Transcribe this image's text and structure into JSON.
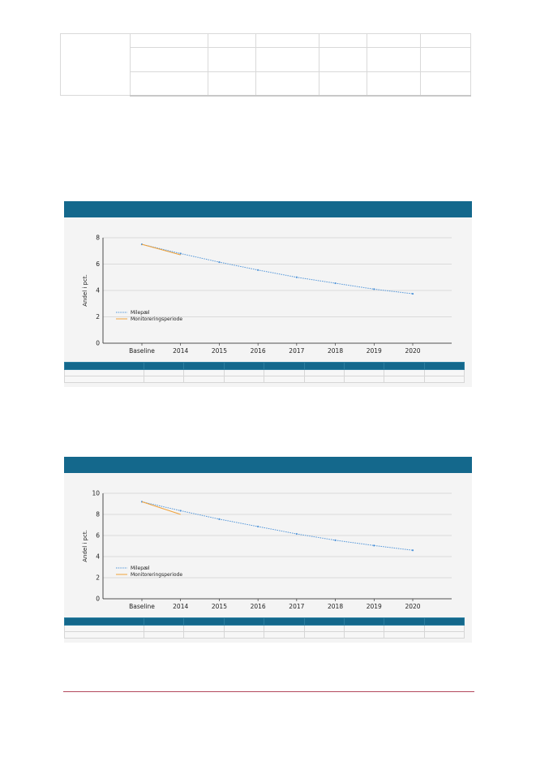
{
  "top_table": {
    "rows": 3,
    "cols": 7
  },
  "charts": [
    {
      "ylabel": "Andel i pct.",
      "legend": [
        "Milepæl",
        "Monitoreringsperiode"
      ],
      "colors": {
        "milestone": "#4f94d9",
        "monitoring": "#f0a23a",
        "header": "#14688c"
      }
    },
    {
      "ylabel": "Andel i pct.",
      "legend": [
        "Milepæl",
        "Monitoreringsperiode"
      ],
      "colors": {
        "milestone": "#4f94d9",
        "monitoring": "#f0a23a",
        "header": "#14688c"
      }
    }
  ],
  "chart_data": [
    {
      "type": "line",
      "categories": [
        "Baseline",
        "2014",
        "2015",
        "2016",
        "2017",
        "2018",
        "2019",
        "2020"
      ],
      "y_ticks": [
        0,
        2,
        4,
        6,
        8
      ],
      "ylim": [
        0,
        8
      ],
      "ylabel": "Andel i pct.",
      "series": [
        {
          "name": "Milepæl",
          "values": [
            7.5,
            6.8,
            6.15,
            5.55,
            5.0,
            4.55,
            4.1,
            3.75
          ]
        },
        {
          "name": "Monitoreringsperiode",
          "values": [
            7.5,
            6.7,
            null,
            null,
            null,
            null,
            null,
            null
          ]
        }
      ],
      "grid": true,
      "legend_position": "bottom-left"
    },
    {
      "type": "line",
      "categories": [
        "Baseline",
        "2014",
        "2015",
        "2016",
        "2017",
        "2018",
        "2019",
        "2020"
      ],
      "y_ticks": [
        0,
        2,
        4,
        6,
        8,
        10
      ],
      "ylim": [
        0,
        10
      ],
      "ylabel": "Andel i pct.",
      "series": [
        {
          "name": "Milepæl",
          "values": [
            9.2,
            8.35,
            7.55,
            6.85,
            6.15,
            5.55,
            5.05,
            4.6
          ]
        },
        {
          "name": "Monitoreringsperiode",
          "values": [
            9.2,
            8.0,
            null,
            null,
            null,
            null,
            null,
            null
          ]
        }
      ],
      "grid": true,
      "legend_position": "bottom-left"
    }
  ]
}
